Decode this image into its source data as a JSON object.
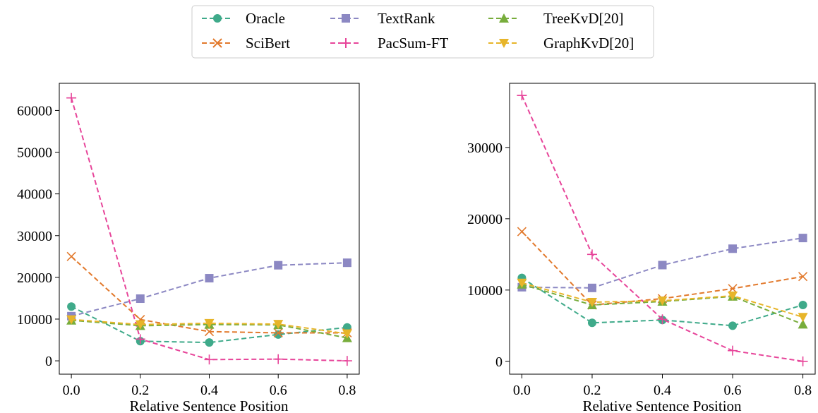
{
  "legend": {
    "placement": "top-center",
    "entries": [
      {
        "name": "Oracle",
        "color": "#3faa8a",
        "marker": "circle"
      },
      {
        "name": "TextRank",
        "color": "#8c88c3",
        "marker": "square"
      },
      {
        "name": "TreeKvD[20]",
        "color": "#78ad3c",
        "marker": "triangle-up"
      },
      {
        "name": "SciBert",
        "color": "#e2792c",
        "marker": "x"
      },
      {
        "name": "PacSum-FT",
        "color": "#e7459a",
        "marker": "plus"
      },
      {
        "name": "GraphKvD[20]",
        "color": "#e7b52a",
        "marker": "triangle-down"
      }
    ]
  },
  "chart_data": [
    {
      "type": "line",
      "xlabel": "Relative Sentence Position",
      "ylabel": "",
      "xlim": [
        -0.035,
        0.835
      ],
      "ylim": [
        -3200,
        66500
      ],
      "xticks": [
        "0.0",
        "0.2",
        "0.4",
        "0.6",
        "0.8"
      ],
      "yticks": [
        "0",
        "10000",
        "20000",
        "30000",
        "40000",
        "50000",
        "60000"
      ],
      "x": [
        0.0,
        0.2,
        0.4,
        0.6,
        0.8
      ],
      "grid": false,
      "series": [
        {
          "name": "Oracle",
          "values": [
            13000,
            4700,
            4400,
            6300,
            8000
          ]
        },
        {
          "name": "SciBert",
          "values": [
            25000,
            9900,
            7000,
            6700,
            6700
          ]
        },
        {
          "name": "TextRank",
          "values": [
            10700,
            14900,
            19800,
            22900,
            23500
          ]
        },
        {
          "name": "PacSum-FT",
          "values": [
            63000,
            5200,
            300,
            400,
            0
          ]
        },
        {
          "name": "TreeKvD[20]",
          "values": [
            9700,
            8400,
            8700,
            8600,
            5500
          ]
        },
        {
          "name": "GraphKvD[20]",
          "values": [
            9900,
            8700,
            9000,
            8800,
            6500
          ]
        }
      ]
    },
    {
      "type": "line",
      "xlabel": "Relative Sentence Position",
      "ylabel": "",
      "xlim": [
        -0.035,
        0.835
      ],
      "ylim": [
        -1800,
        39000
      ],
      "xticks": [
        "0.0",
        "0.2",
        "0.4",
        "0.6",
        "0.8"
      ],
      "yticks": [
        "0",
        "10000",
        "20000",
        "30000"
      ],
      "x": [
        0.0,
        0.2,
        0.4,
        0.6,
        0.8
      ],
      "grid": false,
      "series": [
        {
          "name": "Oracle",
          "values": [
            11700,
            5400,
            5800,
            5000,
            7900
          ]
        },
        {
          "name": "SciBert",
          "values": [
            18200,
            7900,
            8800,
            10200,
            11900
          ]
        },
        {
          "name": "TextRank",
          "values": [
            10400,
            10300,
            13500,
            15800,
            17300
          ]
        },
        {
          "name": "PacSum-FT",
          "values": [
            37300,
            15000,
            5900,
            1500,
            0
          ]
        },
        {
          "name": "TreeKvD[20]",
          "values": [
            10800,
            7900,
            8400,
            9100,
            5200
          ]
        },
        {
          "name": "GraphKvD[20]",
          "values": [
            11000,
            8300,
            8500,
            9200,
            6200
          ]
        }
      ]
    }
  ]
}
